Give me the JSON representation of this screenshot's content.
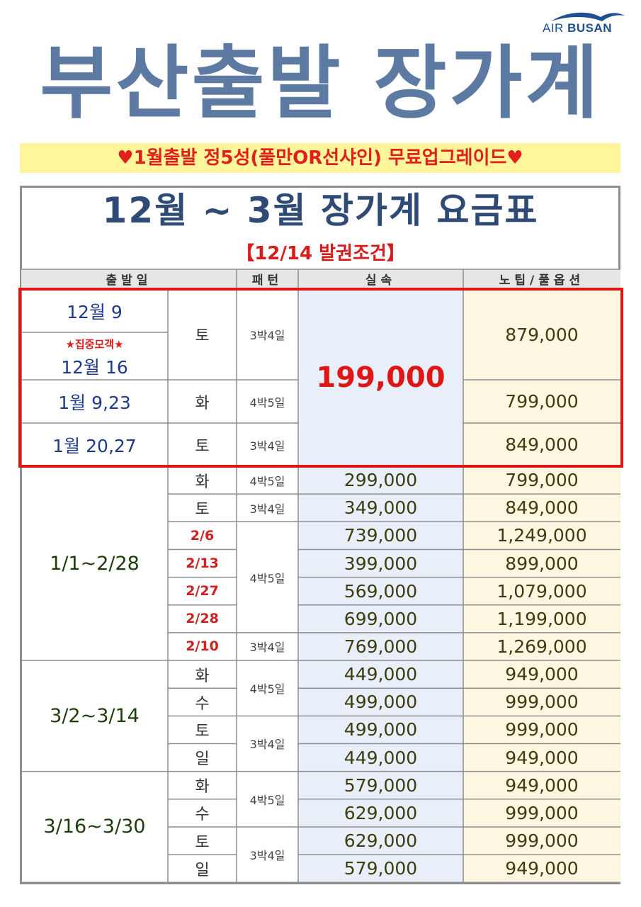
{
  "logo": {
    "prefix": "AIR",
    "name": "BUSAN"
  },
  "title": "부산출발 장가계",
  "promo": "♥1월출발  정5성(풀만OR선샤인)  무료업그레이드♥",
  "table_title": "12월  ~  3월  장가계  요금표",
  "table_subtitle": "【12/14  발권조건】",
  "headers": {
    "date": "출발일",
    "pattern": "패턴",
    "basic": "실속",
    "premium": "노팁/풀옵션"
  },
  "featured": {
    "row1_date": "12월  9",
    "row1_star": "★집중모객★",
    "row1_date2": "12월  16",
    "row1_day": "토",
    "row1_pattern": "3박4일",
    "row1_premium": "879,000",
    "row2_date": "1월  9,23",
    "row2_day": "화",
    "row2_pattern": "4박5일",
    "row2_premium": "799,000",
    "row3_date": "1월  20,27",
    "row3_day": "토",
    "row3_pattern": "3박4일",
    "row3_premium": "849,000",
    "shared_price": "199,000"
  },
  "groups": [
    {
      "range": "1/1~2/28",
      "rows": [
        {
          "day": "화",
          "pattern": "4박5일",
          "basic": "299,000",
          "premium": "799,000"
        },
        {
          "day": "토",
          "pattern": "3박4일",
          "basic": "349,000",
          "premium": "849,000"
        },
        {
          "day": "2/6",
          "pattern": "",
          "basic": "739,000",
          "premium": "1,249,000"
        },
        {
          "day": "2/13",
          "pattern": "4박5일",
          "basic": "399,000",
          "premium": "899,000"
        },
        {
          "day": "2/27",
          "pattern": "",
          "basic": "569,000",
          "premium": "1,079,000"
        },
        {
          "day": "2/28",
          "pattern": "",
          "basic": "699,000",
          "premium": "1,199,000"
        },
        {
          "day": "2/10",
          "pattern": "3박4일",
          "basic": "769,000",
          "premium": "1,269,000"
        }
      ]
    },
    {
      "range": "3/2~3/14",
      "rows": [
        {
          "day": "화",
          "pattern": "4박5일",
          "basic": "449,000",
          "premium": "949,000"
        },
        {
          "day": "수",
          "pattern": "",
          "basic": "499,000",
          "premium": "999,000"
        },
        {
          "day": "토",
          "pattern": "3박4일",
          "basic": "499,000",
          "premium": "999,000"
        },
        {
          "day": "일",
          "pattern": "",
          "basic": "449,000",
          "premium": "949,000"
        }
      ]
    },
    {
      "range": "3/16~3/30",
      "rows": [
        {
          "day": "화",
          "pattern": "4박5일",
          "basic": "579,000",
          "premium": "949,000"
        },
        {
          "day": "수",
          "pattern": "",
          "basic": "629,000",
          "premium": "999,000"
        },
        {
          "day": "토",
          "pattern": "3박4일",
          "basic": "629,000",
          "premium": "999,000"
        },
        {
          "day": "일",
          "pattern": "",
          "basic": "579,000",
          "premium": "949,000"
        }
      ]
    }
  ],
  "colors": {
    "basic_bg": "#e9eff8",
    "premium_bg": "#fdf7e2",
    "header_bg": "#e6e6e6",
    "highlight_border": "#e01515",
    "grid_line": "#8e8e8e"
  }
}
